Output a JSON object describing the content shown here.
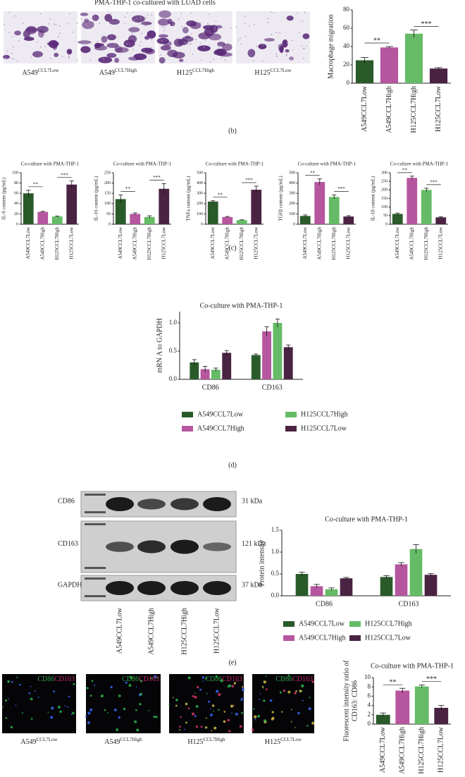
{
  "figure_title": "PMA-THP-1 co-cultured with LUAD cells",
  "migration_images": [
    {
      "cell": "A549",
      "sup": "CCL7Low"
    },
    {
      "cell": "A549",
      "sup": "CCL7High"
    },
    {
      "cell": "H125",
      "sup": "CCL7High"
    },
    {
      "cell": "H125",
      "sup": "CCL7Low"
    }
  ],
  "panel_labels": [
    "(b)",
    "(c)",
    "(d)",
    "(e)"
  ],
  "blot": {
    "rows": [
      {
        "protein": "CD86",
        "size": "31 kDa"
      },
      {
        "protein": "CD163",
        "size": "121 kDa"
      },
      {
        "protein": "GAPDH",
        "size": "37 kDa"
      }
    ],
    "lanes": [
      "A549CCL7Low",
      "A549CCL7High",
      "H125CCL7High",
      "H125CCL7Low"
    ]
  },
  "fluorescence": {
    "stains": [
      "CD86",
      "CD163"
    ],
    "images": [
      {
        "cell": "A549",
        "sup": "CCL7Low"
      },
      {
        "cell": "A549",
        "sup": "CCL7High"
      },
      {
        "cell": "H125",
        "sup": "CCL7High"
      },
      {
        "cell": "H125",
        "sup": "CCL7Low"
      }
    ]
  },
  "chart_data": [
    {
      "type": "bar",
      "ylabel": "Macrophage migration",
      "categories": [
        "A549CCL7Low",
        "A549CCL7High",
        "H125CCL7High",
        "H125CCL7Low"
      ],
      "values": [
        25,
        39,
        54,
        16
      ],
      "errors": [
        3,
        1,
        4,
        1
      ],
      "colors": [
        "#2b5a2a",
        "#b5569e",
        "#66bb66",
        "#4a2342"
      ],
      "ylim": [
        0,
        80
      ],
      "yticks": [
        0,
        20,
        40,
        60,
        80
      ],
      "annotations": [
        "**",
        "***"
      ]
    },
    {
      "type": "bar",
      "title": "Co-culture with PMA-THP-1",
      "ylabel": "IL-6 content (pg/mL)",
      "categories": [
        "A549CCL7Low",
        "A549CCL7High",
        "H125CCL7High",
        "H125CCL7Low"
      ],
      "values": [
        60,
        24,
        15,
        77
      ],
      "errors": [
        6,
        1,
        1,
        7
      ],
      "colors": [
        "#2b5a2a",
        "#b5569e",
        "#66bb66",
        "#4a2342"
      ],
      "ylim": [
        0,
        100
      ],
      "yticks": [
        0,
        20,
        40,
        60,
        80,
        100
      ],
      "annotations": [
        "**",
        "***"
      ]
    },
    {
      "type": "bar",
      "title": "Co-culture with PMA-THP-1",
      "ylabel": "IL-1b content (pg/mL)",
      "categories": [
        "A549CCL7Low",
        "A549CCL7High",
        "H125CCL7High",
        "H125CCL7Low"
      ],
      "values": [
        122,
        50,
        35,
        172
      ],
      "errors": [
        20,
        5,
        6,
        25
      ],
      "colors": [
        "#2b5a2a",
        "#b5569e",
        "#66bb66",
        "#4a2342"
      ],
      "ylim": [
        0,
        250
      ],
      "yticks": [
        0,
        50,
        100,
        150,
        200,
        250
      ],
      "annotations": [
        "**",
        "***"
      ]
    },
    {
      "type": "bar",
      "title": "Co-culture with PMA-THP-1",
      "ylabel": "TNFa content (pg/mL)",
      "categories": [
        "A549CCL7Low",
        "A549CCL7High",
        "H125CCL7High",
        "H125CCL7Low"
      ],
      "values": [
        220,
        70,
        40,
        335
      ],
      "errors": [
        8,
        5,
        3,
        35
      ],
      "colors": [
        "#2b5a2a",
        "#b5569e",
        "#66bb66",
        "#4a2342"
      ],
      "ylim": [
        0,
        500
      ],
      "yticks": [
        0,
        100,
        200,
        300,
        400,
        500
      ],
      "annotations": [
        "**",
        "***"
      ]
    },
    {
      "type": "bar",
      "title": "Co-culture with PMA-THP-1",
      "ylabel": "TGFβ content (pg/mL)",
      "categories": [
        "A549CCL7Low",
        "A549CCL7High",
        "H125CCL7High",
        "H125CCL7Low"
      ],
      "values": [
        80,
        410,
        265,
        75
      ],
      "errors": [
        10,
        30,
        20,
        8
      ],
      "colors": [
        "#2b5a2a",
        "#b5569e",
        "#66bb66",
        "#4a2342"
      ],
      "ylim": [
        0,
        500
      ],
      "yticks": [
        0,
        100,
        200,
        300,
        400,
        500
      ],
      "annotations": [
        "**",
        "***"
      ]
    },
    {
      "type": "bar",
      "title": "Co-culture with PMA-THP-1",
      "ylabel": "IL-10 content (pg/mL)",
      "categories": [
        "A549CCL7Low",
        "A549CCL7High",
        "H125CCL7High",
        "H125CCL7Low"
      ],
      "values": [
        60,
        270,
        200,
        40
      ],
      "errors": [
        5,
        10,
        10,
        3
      ],
      "colors": [
        "#2b5a2a",
        "#b5569e",
        "#66bb66",
        "#4a2342"
      ],
      "ylim": [
        0,
        300
      ],
      "yticks": [
        0,
        50,
        100,
        150,
        200,
        250,
        300
      ],
      "annotations": [
        "**",
        "***"
      ]
    },
    {
      "type": "grouped_bar",
      "title": "Co-culture with PMA-THP-1",
      "ylabel": "mRN A to GAPDH",
      "categories": [
        "CD86",
        "CD163"
      ],
      "series": [
        {
          "name": "A549CCL7Low",
          "color": "#2b5a2a",
          "values": [
            0.3,
            0.43
          ],
          "errors": [
            0.05,
            0.02
          ]
        },
        {
          "name": "A549CCL7High",
          "color": "#b5569e",
          "values": [
            0.18,
            0.85
          ],
          "errors": [
            0.05,
            0.08
          ]
        },
        {
          "name": "H125CCL7High",
          "color": "#66bb66",
          "values": [
            0.17,
            1.0
          ],
          "errors": [
            0.03,
            0.07
          ]
        },
        {
          "name": "H125CCL7Low",
          "color": "#4a2342",
          "values": [
            0.47,
            0.57
          ],
          "errors": [
            0.04,
            0.04
          ]
        }
      ],
      "ylim": [
        0,
        1.2
      ],
      "yticks": [
        {
          "value": 0,
          "label": "0.0"
        },
        0.5,
        {
          "value": 1,
          "label": "1.0"
        }
      ]
    },
    {
      "type": "grouped_bar",
      "title": "Co-culture with PMA-THP-1",
      "ylabel": "Protein intensity",
      "categories": [
        "CD86",
        "CD163"
      ],
      "series": [
        {
          "name": "A549CCL7Low",
          "color": "#2b5a2a",
          "values": [
            0.5,
            0.43
          ],
          "errors": [
            0.04,
            0.03
          ]
        },
        {
          "name": "A549CCL7High",
          "color": "#b5569e",
          "values": [
            0.22,
            0.72
          ],
          "errors": [
            0.04,
            0.04
          ]
        },
        {
          "name": "H125CCL7High",
          "color": "#66bb66",
          "values": [
            0.15,
            1.07
          ],
          "errors": [
            0.03,
            0.1
          ]
        },
        {
          "name": "H125CCL7Low",
          "color": "#4a2342",
          "values": [
            0.4,
            0.48
          ],
          "errors": [
            0.02,
            0.03
          ]
        }
      ],
      "ylim": [
        0,
        1.5
      ],
      "yticks": [
        {
          "value": 0,
          "label": "0.0"
        },
        0.5,
        {
          "value": 1,
          "label": "1.0"
        },
        1.5
      ]
    },
    {
      "type": "bar",
      "title": "Co-culture with PMA-THP-1",
      "ylabel": [
        "Fluorescent intensity ratio of",
        "CD163: CD86"
      ],
      "categories": [
        "A549CCL7Low",
        "A549CCL7High",
        "H125CCL7High",
        "H125CCL7Low"
      ],
      "values": [
        2,
        7.2,
        8.1,
        3.5
      ],
      "errors": [
        0.4,
        0.5,
        0.3,
        0.5
      ],
      "colors": [
        "#2b5a2a",
        "#b5569e",
        "#66bb66",
        "#4a2342"
      ],
      "ylim": [
        0,
        10
      ],
      "yticks": [
        0,
        2,
        4,
        6,
        8,
        10
      ],
      "annotations": [
        "**",
        "***"
      ]
    }
  ]
}
